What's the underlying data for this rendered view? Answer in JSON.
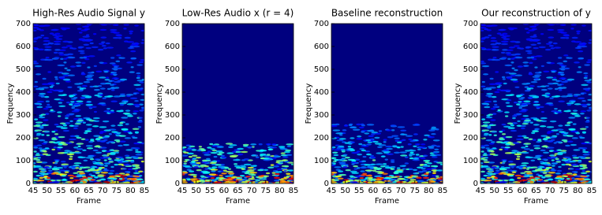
{
  "chart_data": [
    {
      "type": "heatmap",
      "title": "High-Res Audio Signal y",
      "xlabel": "Frame",
      "ylabel": "Frequency",
      "xlim": [
        45,
        85
      ],
      "xticks": [
        45,
        50,
        55,
        60,
        65,
        70,
        75,
        80,
        85
      ],
      "ylim": [
        0,
        700
      ],
      "yticks": [
        0,
        100,
        200,
        300,
        400,
        500,
        600,
        700
      ]
    },
    {
      "type": "heatmap",
      "title": "Low-Res Audio x (r = 4)",
      "xlabel": "Frame",
      "ylabel": "Frequency",
      "xlim": [
        45,
        85
      ],
      "xticks": [
        45,
        50,
        55,
        60,
        65,
        70,
        75,
        80,
        85
      ],
      "ylim": [
        0,
        700
      ],
      "yticks": [
        0,
        100,
        200,
        300,
        400,
        500,
        600,
        700
      ]
    },
    {
      "type": "heatmap",
      "title": "Baseline reconstruction",
      "xlabel": "Frame",
      "ylabel": "Frequency",
      "xlim": [
        45,
        85
      ],
      "xticks": [
        45,
        50,
        55,
        60,
        65,
        70,
        75,
        80,
        85
      ],
      "ylim": [
        0,
        700
      ],
      "yticks": [
        0,
        100,
        200,
        300,
        400,
        500,
        600,
        700
      ]
    },
    {
      "type": "heatmap",
      "title": "Our reconstruction of y",
      "xlabel": "Frame",
      "ylabel": "Frequency",
      "xlim": [
        45,
        85
      ],
      "xticks": [
        45,
        50,
        55,
        60,
        65,
        70,
        75,
        80,
        85
      ],
      "ylim": [
        0,
        700
      ],
      "yticks": [
        0,
        100,
        200,
        300,
        400,
        500,
        600,
        700
      ]
    }
  ]
}
